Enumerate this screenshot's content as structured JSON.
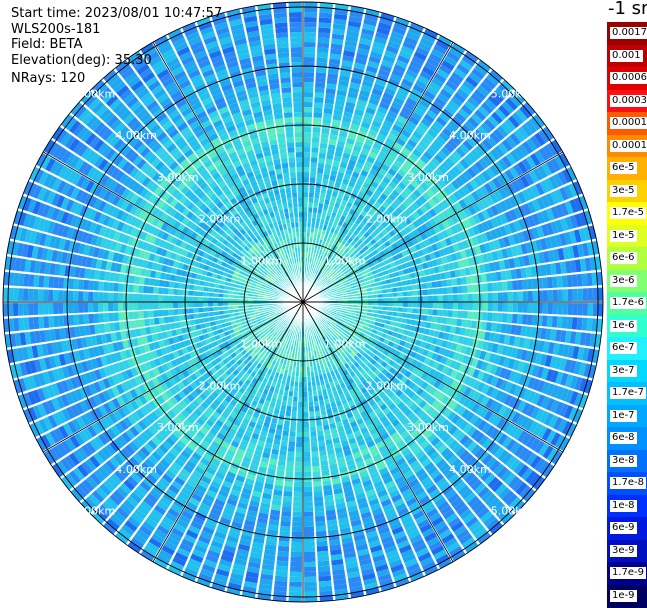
{
  "header": {
    "start_time": "Start time: 2023/08/01 10:47:57",
    "device": "WLS200s-181",
    "field": "Field: BETA",
    "elevation": "Elevation(deg): 35.30",
    "nrays": "NRays: 120"
  },
  "colorbar": {
    "title": "-1 sr",
    "labels": [
      "0.0017",
      "0.001",
      "0.0006",
      "0.0003",
      "0.00017",
      "0.0001",
      "6e-5",
      "3e-5",
      "1.7e-5",
      "1e-5",
      "6e-6",
      "3e-6",
      "1.7e-6",
      "1e-6",
      "6e-7",
      "3e-7",
      "1.7e-7",
      "1e-7",
      "6e-8",
      "3e-8",
      "1.7e-8",
      "1e-8",
      "6e-9",
      "3e-9",
      "1.7e-9",
      "1e-9"
    ],
    "colors": [
      "#9e0000",
      "#c00000",
      "#e00000",
      "#ff1010",
      "#ff5a00",
      "#ff8c00",
      "#ffb000",
      "#ffd000",
      "#ffff00",
      "#e0ff20",
      "#b0ff40",
      "#80ff70",
      "#50ffa0",
      "#30ffd0",
      "#20f0ff",
      "#00d8ff",
      "#00c0ff",
      "#00a8ff",
      "#0090ff",
      "#0070ff",
      "#0050ff",
      "#0030ff",
      "#0018e0",
      "#0010c0",
      "#000090",
      "#000060"
    ]
  },
  "chart_data": {
    "type": "heatmap",
    "projection": "polar (PPI scan)",
    "nrays": 120,
    "range_rings_km": [
      1,
      2,
      3,
      4,
      5
    ],
    "ring_labels": [
      "1.00km",
      "2.00km",
      "3.00km",
      "4.00km",
      "5.00km"
    ],
    "max_range_km": 5.0,
    "radial_lines": 12,
    "field": "BETA",
    "colorbar_unit": "-1 sr"
  }
}
